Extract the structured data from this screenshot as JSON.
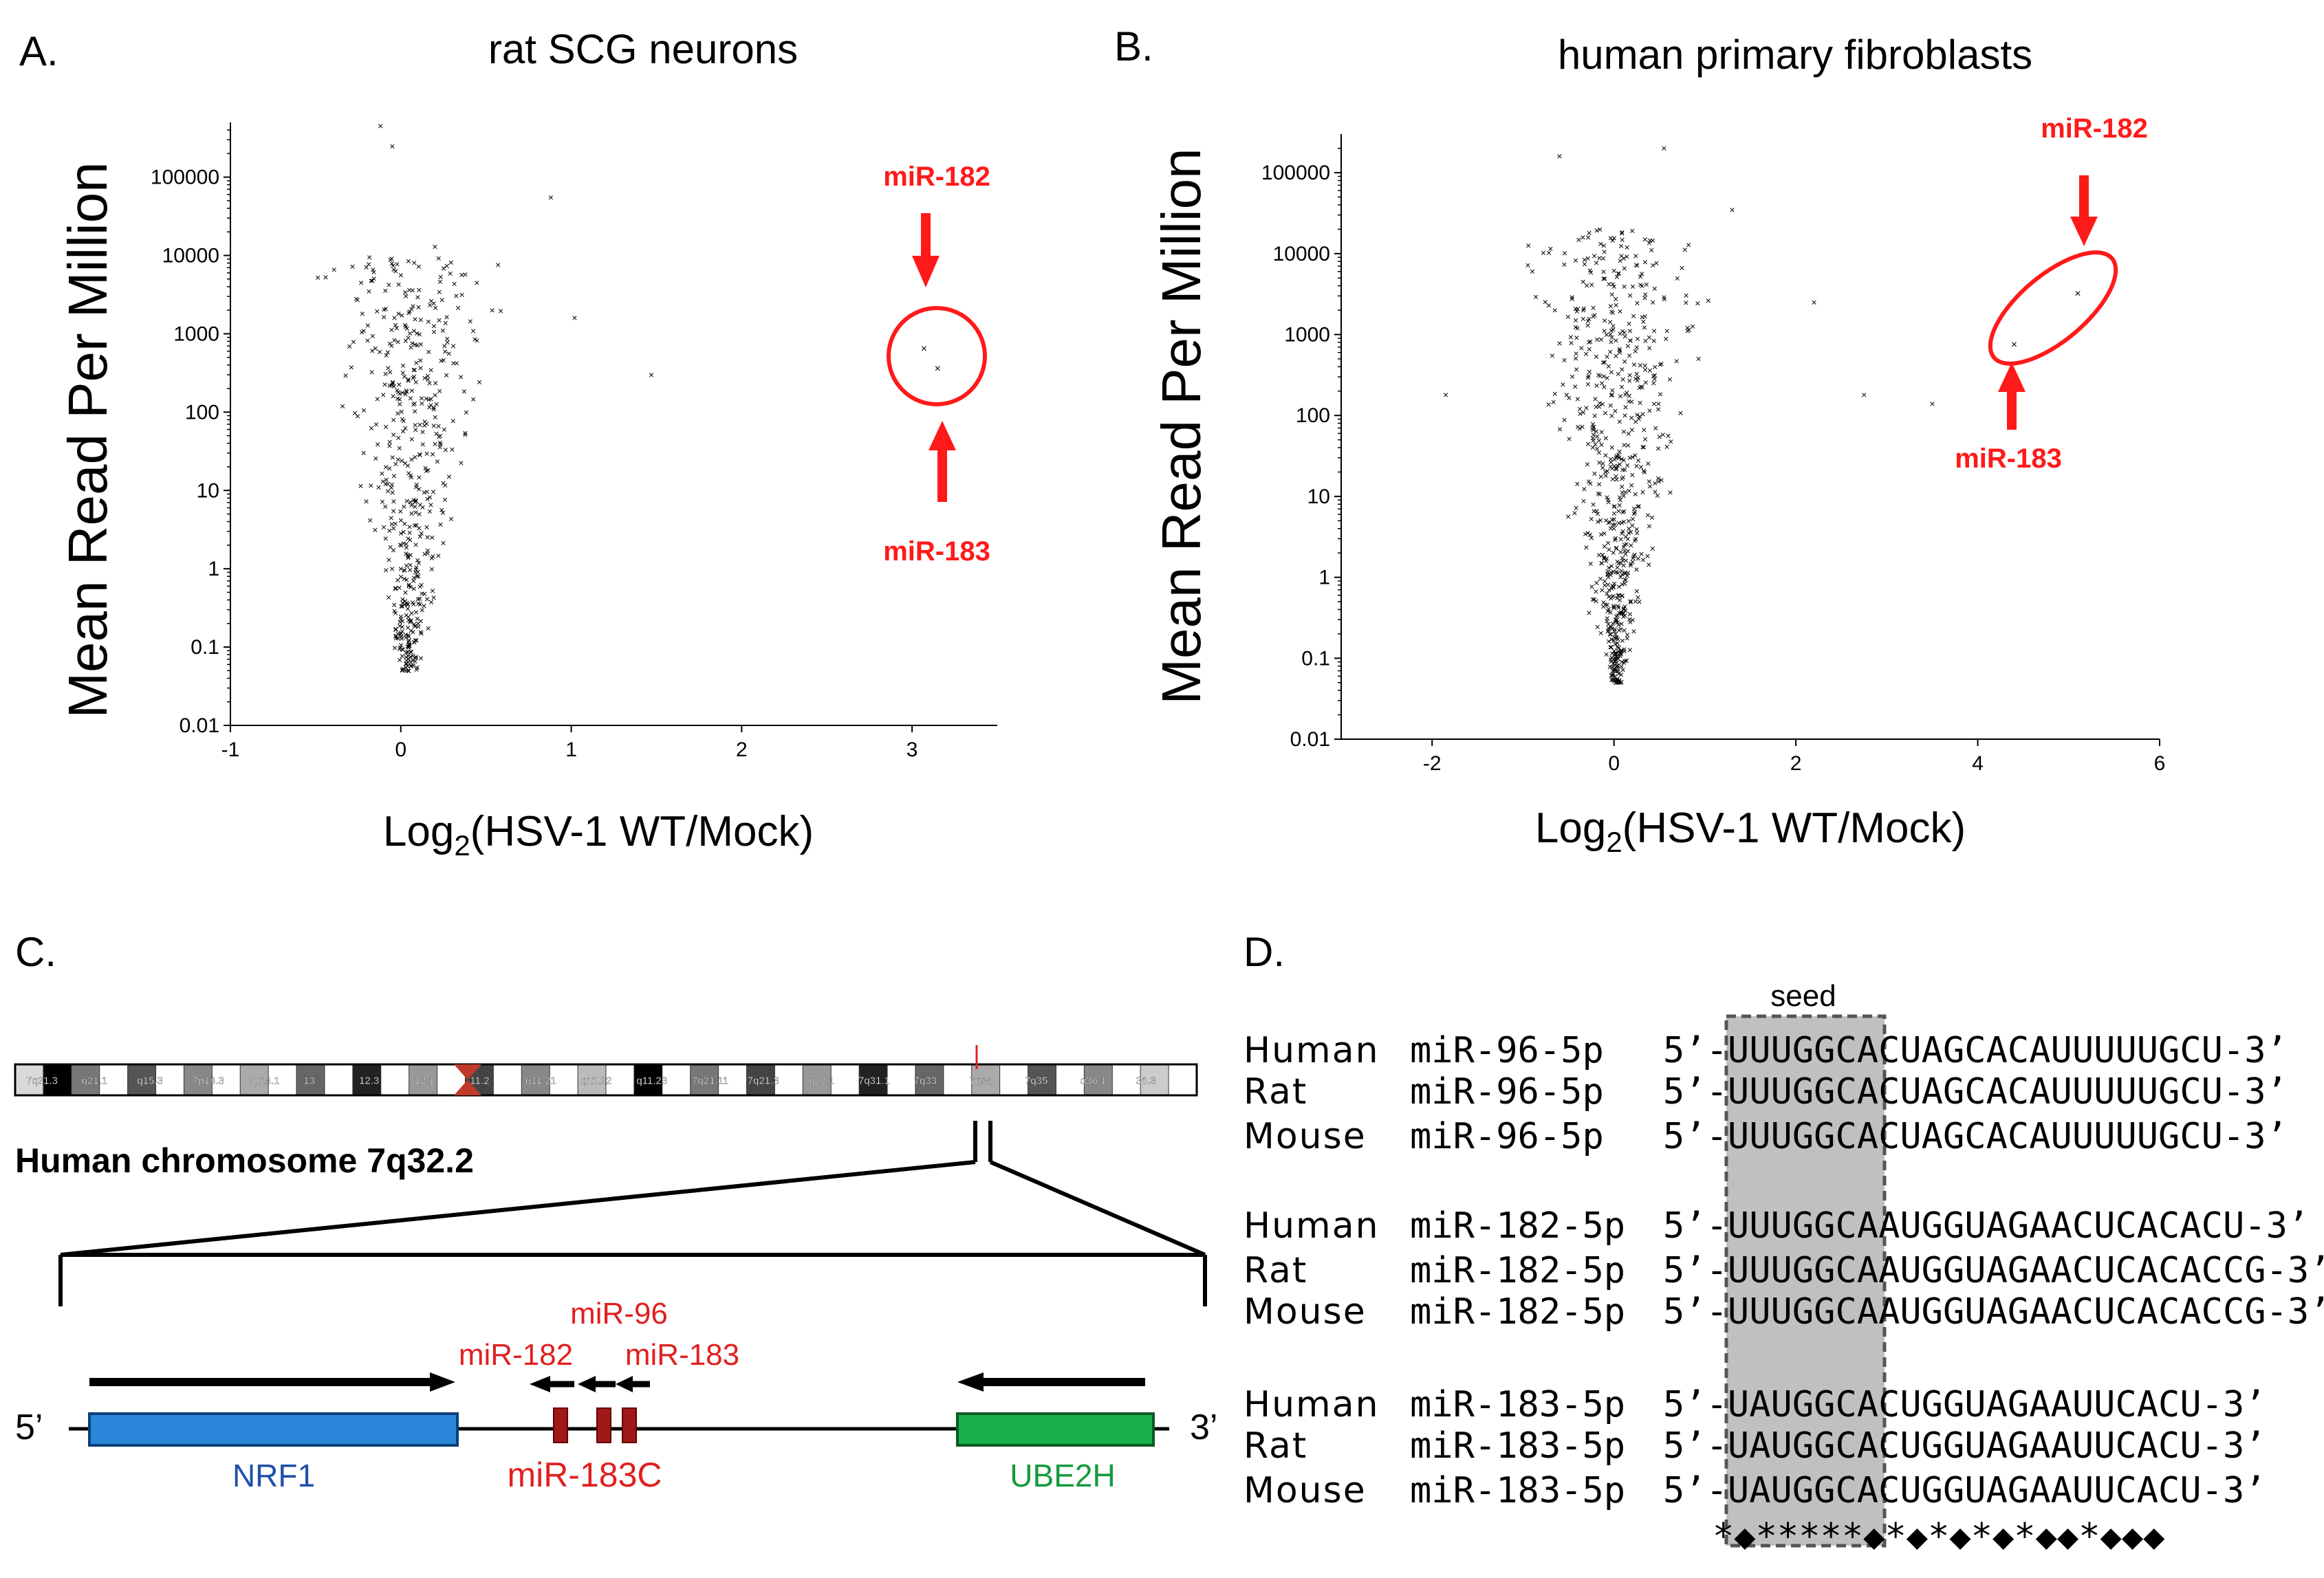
{
  "panel_a": {
    "letter": "A.",
    "title": "rat SCG neurons",
    "ylabel": "Mean Read Per Million",
    "xlabel_pre": "Log",
    "xlabel_sub": "2",
    "xlabel_post": "(HSV-1 WT/Mock)",
    "label_top": "miR-182",
    "label_bottom": "miR-183"
  },
  "panel_b": {
    "letter": "B.",
    "title": "human primary fibroblasts",
    "ylabel": "Mean Read Per Million",
    "xlabel_pre": "Log",
    "xlabel_sub": "2",
    "xlabel_post": "(HSV-1 WT/Mock)",
    "label_top": "miR-182",
    "label_bottom": "miR-183"
  },
  "panel_c": {
    "letter": "C.",
    "chrom_label": "Human chromosome 7q32.2",
    "bands": [
      "7q21.3",
      "q21.1",
      "q15.3",
      "7p14.3",
      "7p14.1",
      "13",
      "12.3",
      "12.1",
      "11.2",
      "q11.21",
      "q11.22",
      "q11.23",
      "7q21.11",
      "7q21.3",
      "7q22.1",
      "7q31.1",
      "7q33",
      "7q34",
      "7q35",
      "q36.1",
      "36.3"
    ],
    "five_prime": "5’",
    "three_prime": "3’",
    "gene_nrf1": "NRF1",
    "gene_cluster": "miR-183C",
    "gene_ube2h": "UBE2H",
    "mir96": "miR-96",
    "mir182": "miR-182",
    "mir183": "miR-183"
  },
  "panel_d": {
    "letter": "D.",
    "seed_label": "seed",
    "rows": [
      {
        "species": "Human",
        "mirna": "miR-96-5p",
        "seq": "5’-UUUGGCACUAGCACAUUUUUGCU-3’"
      },
      {
        "species": "Rat",
        "mirna": "miR-96-5p",
        "seq": "5’-UUUGGCACUAGCACAUUUUUGCU-3’"
      },
      {
        "species": "Mouse",
        "mirna": "miR-96-5p",
        "seq": "5’-UUUGGCACUAGCACAUUUUUGCU-3’"
      },
      {
        "species": "Human",
        "mirna": "miR-182-5p",
        "seq": "5’-UUUGGCAAUGGUAGAACUCACACU-3’"
      },
      {
        "species": "Rat",
        "mirna": "miR-182-5p",
        "seq": "5’-UUUGGCAAUGGUAGAACUCACACCG-3’"
      },
      {
        "species": "Mouse",
        "mirna": "miR-182-5p",
        "seq": "5’-UUUGGCAAUGGUAGAACUCACACCG-3’"
      },
      {
        "species": "Human",
        "mirna": "miR-183-5p",
        "seq": "5’-UAUGGCACUGGUAGAAUUCACU-3’"
      },
      {
        "species": "Rat",
        "mirna": "miR-183-5p",
        "seq": "5’-UAUGGCACUGGUAGAAUUCACU-3’"
      },
      {
        "species": "Mouse",
        "mirna": "miR-183-5p",
        "seq": "5’-UAUGGCACUGGUAGAAUUCACU-3’"
      }
    ],
    "conservation": "*◆*****◆*◆*◆*◆*◆◆*◆◆◆"
  },
  "colors": {
    "red": "#ff1a1a",
    "nrf1_fill": "#2a86d8",
    "nrf1_text": "#1f4fa8",
    "ube2h_fill": "#18b04a",
    "ube2h_text": "#149a3e",
    "mir_box": "#a01818",
    "seed_fill": "#c0c0c0"
  },
  "chart_data": [
    {
      "type": "scatter",
      "title": "rat SCG neurons",
      "xlabel": "Log2(HSV-1 WT/Mock)",
      "ylabel": "Mean Read Per Million",
      "xlim": [
        -1,
        3.5
      ],
      "ylim": [
        0.01,
        500000
      ],
      "yscale": "log",
      "xticks": [
        "-1",
        "0",
        "1",
        "2",
        "3"
      ],
      "yticks": [
        "0.01",
        "0.1",
        "1",
        "10",
        "100",
        "1000",
        "10000",
        "100000"
      ],
      "highlighted": [
        {
          "name": "miR-182",
          "x": 3.07,
          "y": 650
        },
        {
          "name": "miR-183",
          "x": 3.15,
          "y": 360
        }
      ],
      "notable_points": [
        {
          "x": -0.12,
          "y": 450000
        },
        {
          "x": -0.05,
          "y": 250000
        },
        {
          "x": 0.88,
          "y": 55000
        },
        {
          "x": 1.47,
          "y": 300
        },
        {
          "x": 1.02,
          "y": 1600
        },
        {
          "x": 0.2,
          "y": 13000
        }
      ],
      "seed": 7
    },
    {
      "type": "scatter",
      "title": "human primary fibroblasts",
      "xlabel": "Log2(HSV-1 WT/Mock)",
      "ylabel": "Mean Read Per Million",
      "xlim": [
        -3,
        6
      ],
      "ylim": [
        0.01,
        300000
      ],
      "yscale": "log",
      "xticks": [
        "-2",
        "0",
        "2",
        "4",
        "6"
      ],
      "yticks": [
        "0.01",
        "0.1",
        "1",
        "10",
        "100",
        "1000",
        "10000",
        "100000"
      ],
      "highlighted": [
        {
          "name": "miR-182",
          "x": 5.1,
          "y": 3200
        },
        {
          "name": "miR-183",
          "x": 4.4,
          "y": 750
        }
      ],
      "notable_points": [
        {
          "x": 0.55,
          "y": 200000
        },
        {
          "x": -0.6,
          "y": 160000
        },
        {
          "x": 2.2,
          "y": 2500
        },
        {
          "x": 2.75,
          "y": 180
        },
        {
          "x": 3.5,
          "y": 140
        },
        {
          "x": -1.85,
          "y": 180
        },
        {
          "x": 1.3,
          "y": 35000
        }
      ],
      "seed": 13
    }
  ]
}
